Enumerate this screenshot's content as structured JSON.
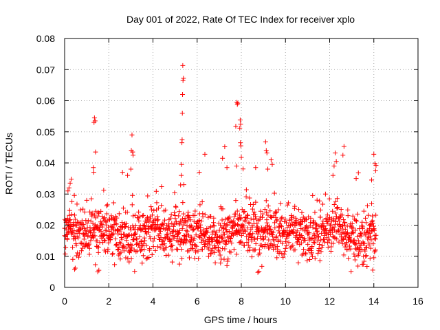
{
  "chart_data": {
    "type": "scatter",
    "title": "Day 001 of 2022, Rate Of TEC Index for receiver xplo",
    "xlabel": "GPS time / hours",
    "ylabel": "ROTI / TECUs",
    "xlim": [
      0,
      16
    ],
    "ylim": [
      0,
      0.08
    ],
    "grid": true,
    "marker": "+",
    "colors": {
      "points": "#ff0000",
      "grid": "#a0a0a0",
      "axes": "#000000"
    },
    "x_ticks": [
      {
        "value": 0,
        "label": "0"
      },
      {
        "value": 2,
        "label": "2"
      },
      {
        "value": 4,
        "label": "4"
      },
      {
        "value": 6,
        "label": "6"
      },
      {
        "value": 8,
        "label": "8"
      },
      {
        "value": 10,
        "label": "10"
      },
      {
        "value": 12,
        "label": "12"
      },
      {
        "value": 14,
        "label": "14"
      },
      {
        "value": 16,
        "label": "16"
      }
    ],
    "y_ticks": [
      {
        "value": 0,
        "label": "0"
      },
      {
        "value": 0.01,
        "label": "0.01"
      },
      {
        "value": 0.02,
        "label": "0.02"
      },
      {
        "value": 0.03,
        "label": "0.03"
      },
      {
        "value": 0.04,
        "label": "0.04"
      },
      {
        "value": 0.05,
        "label": "0.05"
      },
      {
        "value": 0.06,
        "label": "0.06"
      },
      {
        "value": 0.07,
        "label": "0.07"
      },
      {
        "value": 0.08,
        "label": "0.08"
      }
    ],
    "series": [
      {
        "name": "ROTI",
        "data_span": {
          "x_min": 0.0,
          "x_max": 14.1,
          "y_typical_min": 0.005,
          "y_typical_max": 0.035
        },
        "band": {
          "x_start": 0.0,
          "x_end": 14.1,
          "x_step": 0.01,
          "y_center": 0.0175,
          "y_spread": 0.009
        },
        "notable_points": [
          {
            "x": 1.35,
            "y": 0.0545
          },
          {
            "x": 1.38,
            "y": 0.0535
          },
          {
            "x": 1.33,
            "y": 0.053
          },
          {
            "x": 1.4,
            "y": 0.0435
          },
          {
            "x": 1.3,
            "y": 0.0385
          },
          {
            "x": 1.32,
            "y": 0.037
          },
          {
            "x": 3.05,
            "y": 0.049
          },
          {
            "x": 3.02,
            "y": 0.044
          },
          {
            "x": 3.08,
            "y": 0.0435
          },
          {
            "x": 3.1,
            "y": 0.0425
          },
          {
            "x": 3.0,
            "y": 0.038
          },
          {
            "x": 5.35,
            "y": 0.0713
          },
          {
            "x": 5.38,
            "y": 0.0672
          },
          {
            "x": 5.36,
            "y": 0.0665
          },
          {
            "x": 5.34,
            "y": 0.062
          },
          {
            "x": 5.33,
            "y": 0.056
          },
          {
            "x": 5.32,
            "y": 0.0475
          },
          {
            "x": 5.31,
            "y": 0.0465
          },
          {
            "x": 5.3,
            "y": 0.0395
          },
          {
            "x": 5.28,
            "y": 0.036
          },
          {
            "x": 5.4,
            "y": 0.033
          },
          {
            "x": 6.35,
            "y": 0.0428
          },
          {
            "x": 6.1,
            "y": 0.037
          },
          {
            "x": 7.15,
            "y": 0.0415
          },
          {
            "x": 7.25,
            "y": 0.0452
          },
          {
            "x": 7.35,
            "y": 0.0385
          },
          {
            "x": 7.8,
            "y": 0.0595
          },
          {
            "x": 7.82,
            "y": 0.0588
          },
          {
            "x": 7.84,
            "y": 0.0592
          },
          {
            "x": 7.75,
            "y": 0.0518
          },
          {
            "x": 7.78,
            "y": 0.039
          },
          {
            "x": 7.95,
            "y": 0.0538
          },
          {
            "x": 7.97,
            "y": 0.0525
          },
          {
            "x": 7.93,
            "y": 0.0512
          },
          {
            "x": 7.96,
            "y": 0.0465
          },
          {
            "x": 7.98,
            "y": 0.0455
          },
          {
            "x": 8.0,
            "y": 0.0418
          },
          {
            "x": 9.1,
            "y": 0.0468
          },
          {
            "x": 9.13,
            "y": 0.044
          },
          {
            "x": 9.16,
            "y": 0.0432
          },
          {
            "x": 9.2,
            "y": 0.038
          },
          {
            "x": 9.35,
            "y": 0.041
          },
          {
            "x": 9.4,
            "y": 0.0395
          },
          {
            "x": 8.65,
            "y": 0.0385
          },
          {
            "x": 2.85,
            "y": 0.036
          },
          {
            "x": 2.62,
            "y": 0.037
          },
          {
            "x": 12.25,
            "y": 0.0432
          },
          {
            "x": 12.3,
            "y": 0.0405
          },
          {
            "x": 12.2,
            "y": 0.039
          },
          {
            "x": 12.65,
            "y": 0.0453
          },
          {
            "x": 12.6,
            "y": 0.0425
          },
          {
            "x": 12.15,
            "y": 0.036
          },
          {
            "x": 13.3,
            "y": 0.0368
          },
          {
            "x": 13.2,
            "y": 0.035
          },
          {
            "x": 14.0,
            "y": 0.0428
          },
          {
            "x": 14.05,
            "y": 0.0398
          },
          {
            "x": 14.1,
            "y": 0.0392
          },
          {
            "x": 14.08,
            "y": 0.0375
          },
          {
            "x": 13.9,
            "y": 0.0345
          },
          {
            "x": 0.3,
            "y": 0.0348
          },
          {
            "x": 0.25,
            "y": 0.0335
          },
          {
            "x": 0.2,
            "y": 0.032
          },
          {
            "x": 0.15,
            "y": 0.031
          },
          {
            "x": 0.05,
            "y": 0.0215
          },
          {
            "x": 0.0,
            "y": 0.019
          },
          {
            "x": 1.5,
            "y": 0.005
          },
          {
            "x": 1.55,
            "y": 0.0055
          },
          {
            "x": 0.45,
            "y": 0.0058
          },
          {
            "x": 0.48,
            "y": 0.0062
          },
          {
            "x": 8.75,
            "y": 0.0048
          },
          {
            "x": 8.8,
            "y": 0.0052
          },
          {
            "x": 7.35,
            "y": 0.007
          },
          {
            "x": 5.2,
            "y": 0.0075
          }
        ]
      }
    ]
  }
}
